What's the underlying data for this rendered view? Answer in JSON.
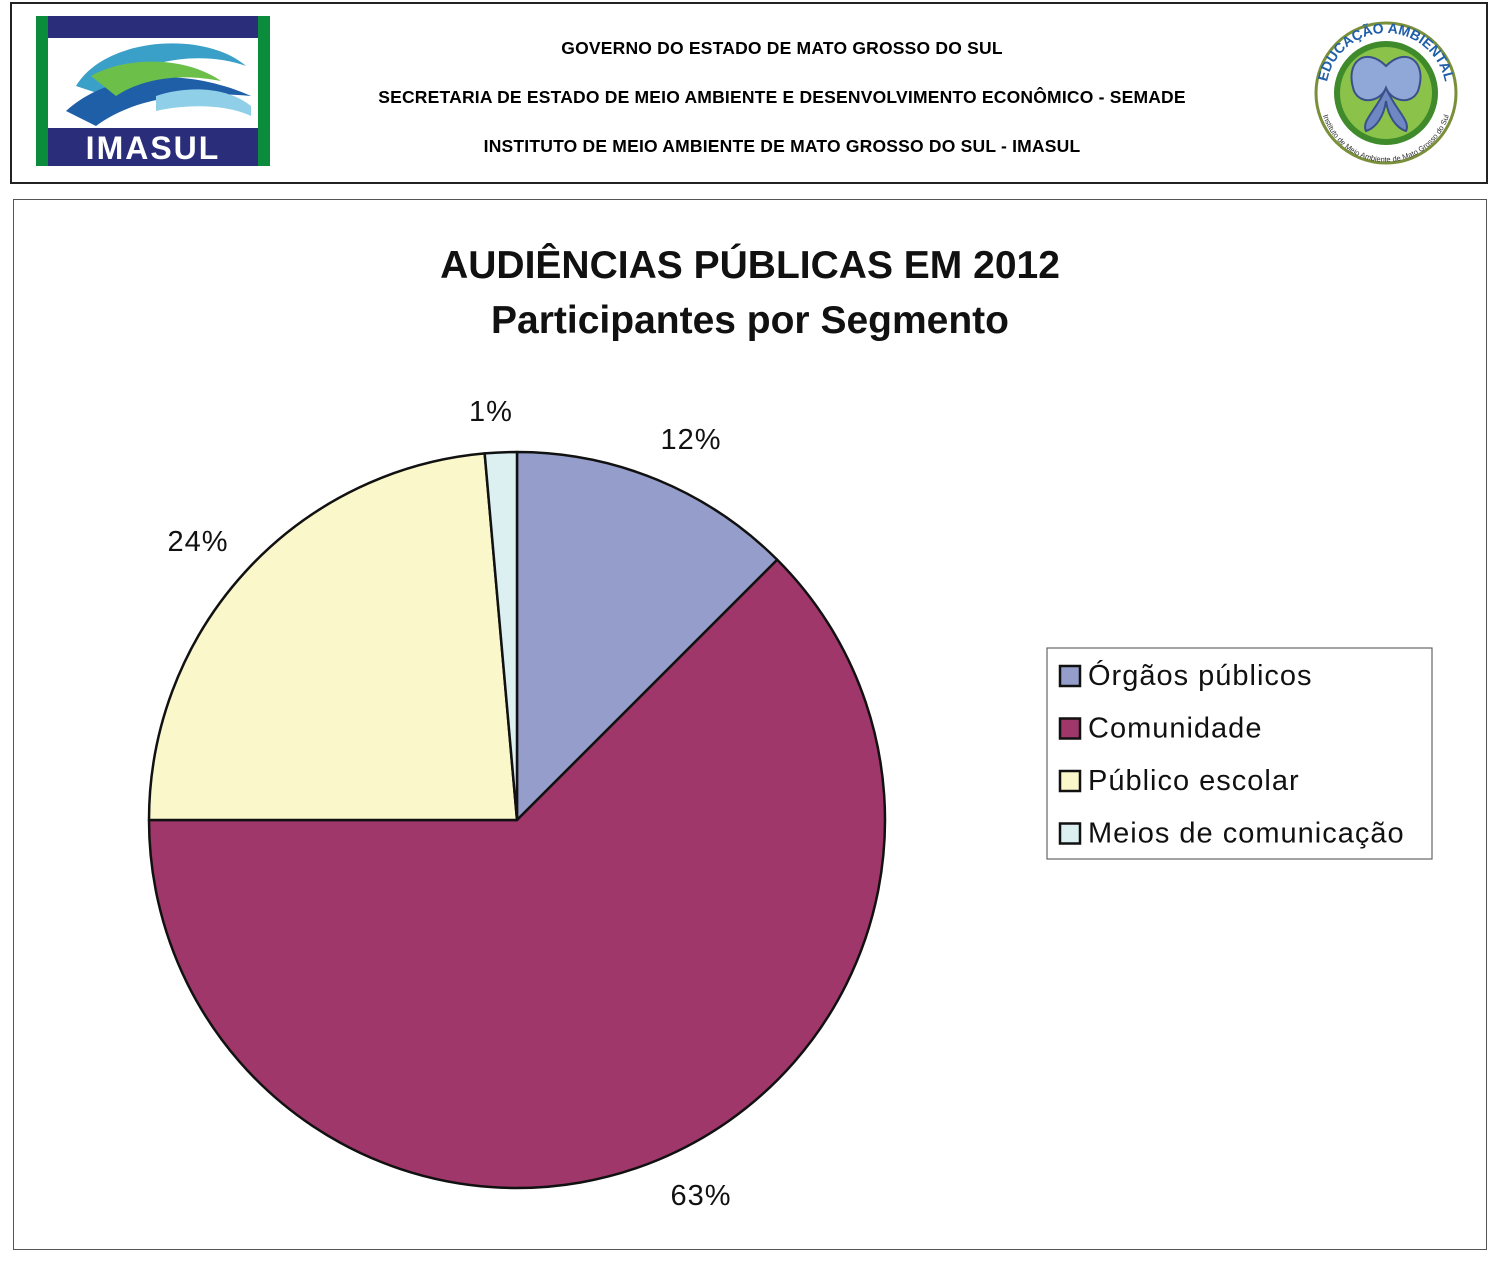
{
  "header": {
    "lines": [
      "GOVERNO DO ESTADO DE MATO GROSSO DO SUL",
      "SECRETARIA DE ESTADO DE MEIO AMBIENTE E DESENVOLVIMENTO ECONÔMICO - SEMADE",
      "INSTITUTO DE MEIO AMBIENTE DE MATO GROSSO DO SUL - IMASUL"
    ],
    "left_logo_text": "IMASUL",
    "right_logo_top_text": "EDUCAÇÃO AMBIENTAL",
    "right_logo_bottom_text": "Instituto de Meio Ambiente de Mato Grosso do Sul"
  },
  "chart_data": {
    "type": "pie",
    "title": "AUDIÊNCIAS PÚBLICAS EM 2012",
    "subtitle": "Participantes por Segmento",
    "categories": [
      "Órgãos públicos",
      "Comunidade",
      "Público escolar",
      "Meios de comunicação"
    ],
    "values": [
      12.5,
      62.5,
      23.6,
      1.4
    ],
    "data_labels": [
      "12%",
      "63%",
      "24%",
      "1%"
    ],
    "colors": [
      "#959ECA",
      "#A0376B",
      "#FAF7CB",
      "#DCEFF1"
    ],
    "legend_position": "right"
  }
}
